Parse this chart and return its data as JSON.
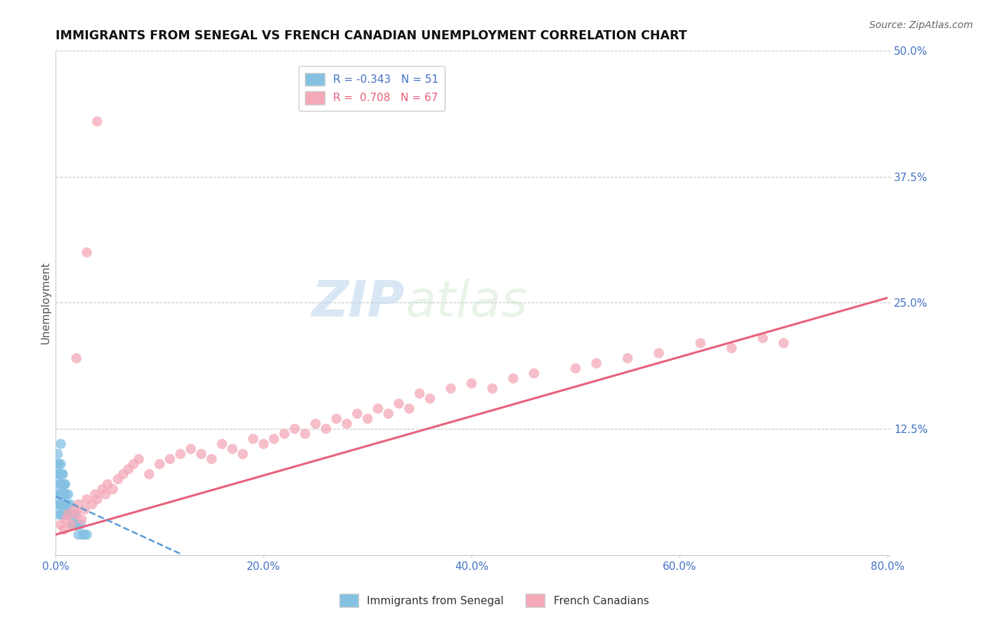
{
  "title": "IMMIGRANTS FROM SENEGAL VS FRENCH CANADIAN UNEMPLOYMENT CORRELATION CHART",
  "source": "Source: ZipAtlas.com",
  "ylabel": "Unemployment",
  "xlim": [
    0,
    0.8
  ],
  "ylim": [
    0,
    0.5
  ],
  "yticks": [
    0.0,
    0.125,
    0.25,
    0.375,
    0.5
  ],
  "ytick_labels": [
    "",
    "12.5%",
    "25.0%",
    "37.5%",
    "50.0%"
  ],
  "xticks": [
    0.0,
    0.2,
    0.4,
    0.6,
    0.8
  ],
  "xtick_labels": [
    "0.0%",
    "20.0%",
    "40.0%",
    "60.0%",
    "80.0%"
  ],
  "blue_R": -0.343,
  "blue_N": 51,
  "pink_R": 0.708,
  "pink_N": 67,
  "blue_color": "#85c1e3",
  "pink_color": "#f4a8b8",
  "blue_line_color": "#5b9bd5",
  "pink_line_color": "#e8607a",
  "tick_color": "#4472c4",
  "watermark_text": "ZIP",
  "watermark_text2": "atlas",
  "legend_label_blue": "Immigrants from Senegal",
  "legend_label_pink": "French Canadians",
  "blue_points_x": [
    0.001,
    0.002,
    0.002,
    0.003,
    0.003,
    0.003,
    0.004,
    0.004,
    0.004,
    0.005,
    0.005,
    0.005,
    0.005,
    0.006,
    0.006,
    0.006,
    0.007,
    0.007,
    0.007,
    0.008,
    0.008,
    0.009,
    0.009,
    0.01,
    0.01,
    0.011,
    0.012,
    0.013,
    0.014,
    0.015,
    0.016,
    0.017,
    0.018,
    0.019,
    0.02,
    0.021,
    0.022,
    0.024,
    0.026,
    0.028,
    0.03,
    0.002,
    0.003,
    0.004,
    0.005,
    0.006,
    0.007,
    0.008,
    0.009,
    0.01,
    0.012
  ],
  "blue_points_y": [
    0.06,
    0.05,
    0.08,
    0.04,
    0.07,
    0.09,
    0.05,
    0.06,
    0.08,
    0.04,
    0.06,
    0.07,
    0.09,
    0.05,
    0.06,
    0.08,
    0.04,
    0.06,
    0.07,
    0.05,
    0.06,
    0.04,
    0.07,
    0.05,
    0.06,
    0.04,
    0.05,
    0.04,
    0.05,
    0.04,
    0.03,
    0.04,
    0.03,
    0.04,
    0.03,
    0.03,
    0.02,
    0.03,
    0.02,
    0.02,
    0.02,
    0.1,
    0.09,
    0.08,
    0.11,
    0.07,
    0.08,
    0.06,
    0.07,
    0.05,
    0.06
  ],
  "pink_points_x": [
    0.005,
    0.008,
    0.01,
    0.012,
    0.015,
    0.018,
    0.02,
    0.022,
    0.025,
    0.028,
    0.03,
    0.035,
    0.038,
    0.04,
    0.045,
    0.048,
    0.05,
    0.055,
    0.06,
    0.065,
    0.07,
    0.075,
    0.08,
    0.09,
    0.1,
    0.11,
    0.12,
    0.13,
    0.14,
    0.15,
    0.16,
    0.17,
    0.18,
    0.19,
    0.2,
    0.21,
    0.22,
    0.23,
    0.24,
    0.25,
    0.26,
    0.27,
    0.28,
    0.29,
    0.3,
    0.31,
    0.32,
    0.33,
    0.34,
    0.35,
    0.36,
    0.38,
    0.4,
    0.42,
    0.44,
    0.46,
    0.5,
    0.52,
    0.55,
    0.58,
    0.62,
    0.65,
    0.68,
    0.7,
    0.02,
    0.03,
    0.04
  ],
  "pink_points_y": [
    0.03,
    0.025,
    0.035,
    0.04,
    0.03,
    0.045,
    0.04,
    0.05,
    0.035,
    0.045,
    0.055,
    0.05,
    0.06,
    0.055,
    0.065,
    0.06,
    0.07,
    0.065,
    0.075,
    0.08,
    0.085,
    0.09,
    0.095,
    0.08,
    0.09,
    0.095,
    0.1,
    0.105,
    0.1,
    0.095,
    0.11,
    0.105,
    0.1,
    0.115,
    0.11,
    0.115,
    0.12,
    0.125,
    0.12,
    0.13,
    0.125,
    0.135,
    0.13,
    0.14,
    0.135,
    0.145,
    0.14,
    0.15,
    0.145,
    0.16,
    0.155,
    0.165,
    0.17,
    0.165,
    0.175,
    0.18,
    0.185,
    0.19,
    0.195,
    0.2,
    0.21,
    0.205,
    0.215,
    0.21,
    0.195,
    0.3,
    0.43
  ],
  "pink_trend_x": [
    0.0,
    0.8
  ],
  "pink_trend_y": [
    0.02,
    0.255
  ],
  "blue_trend_x": [
    0.0,
    0.12
  ],
  "blue_trend_y": [
    0.058,
    0.001
  ]
}
